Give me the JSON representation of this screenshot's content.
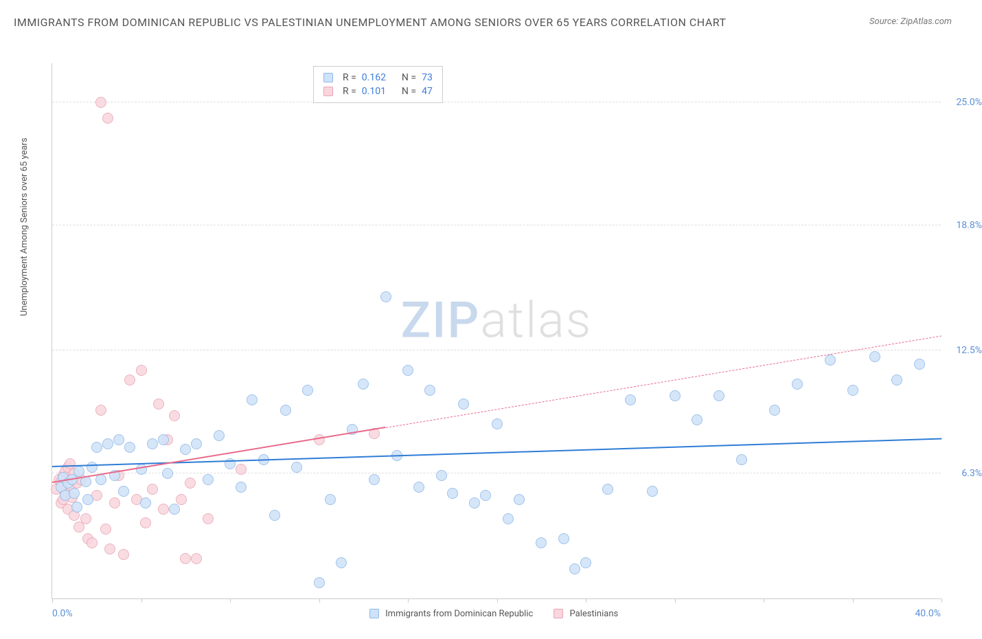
{
  "title": "IMMIGRANTS FROM DOMINICAN REPUBLIC VS PALESTINIAN UNEMPLOYMENT AMONG SENIORS OVER 65 YEARS CORRELATION CHART",
  "source_label": "Source: ZipAtlas.com",
  "ylabel": "Unemployment Among Seniors over 65 years",
  "watermark_a": "ZIP",
  "watermark_b": "atlas",
  "chart": {
    "type": "scatter",
    "xlim": [
      0,
      40
    ],
    "ylim": [
      0,
      27
    ],
    "x_min_label": "0.0%",
    "x_max_label": "40.0%",
    "yticks": [
      {
        "v": 6.3,
        "label": "6.3%"
      },
      {
        "v": 12.5,
        "label": "12.5%"
      },
      {
        "v": 18.8,
        "label": "18.8%"
      },
      {
        "v": 25.0,
        "label": "25.0%"
      }
    ],
    "xtick_positions": [
      0,
      4,
      8,
      12,
      16,
      20,
      24,
      28,
      32,
      36,
      40
    ],
    "grid_color": "#dddddd",
    "axis_color": "#cccccc",
    "background_color": "#ffffff",
    "series": [
      {
        "name": "Immigrants from Dominican Republic",
        "fill": "#cfe2f9",
        "stroke": "#8fb8e8",
        "point_radius": 8,
        "stats": {
          "R": "0.162",
          "N": "73"
        },
        "trend": {
          "x1": 0,
          "y1": 6.6,
          "x2": 40,
          "y2": 8.0,
          "color": "#2e7cd6",
          "solid_until_x": 40
        },
        "points": [
          [
            0.4,
            5.6
          ],
          [
            0.5,
            6.1
          ],
          [
            0.6,
            5.2
          ],
          [
            0.7,
            5.8
          ],
          [
            0.9,
            6.0
          ],
          [
            1.0,
            5.3
          ],
          [
            1.1,
            4.6
          ],
          [
            1.2,
            6.4
          ],
          [
            1.5,
            5.9
          ],
          [
            1.6,
            5.0
          ],
          [
            1.8,
            6.6
          ],
          [
            2.0,
            7.6
          ],
          [
            2.2,
            6.0
          ],
          [
            2.5,
            7.8
          ],
          [
            2.8,
            6.2
          ],
          [
            3.0,
            8.0
          ],
          [
            3.2,
            5.4
          ],
          [
            3.5,
            7.6
          ],
          [
            4.0,
            6.5
          ],
          [
            4.2,
            4.8
          ],
          [
            4.5,
            7.8
          ],
          [
            5.0,
            8.0
          ],
          [
            5.2,
            6.3
          ],
          [
            5.5,
            4.5
          ],
          [
            6.0,
            7.5
          ],
          [
            6.5,
            7.8
          ],
          [
            7.0,
            6.0
          ],
          [
            7.5,
            8.2
          ],
          [
            8.0,
            6.8
          ],
          [
            8.5,
            5.6
          ],
          [
            9.0,
            10.0
          ],
          [
            9.5,
            7.0
          ],
          [
            10.0,
            4.2
          ],
          [
            10.5,
            9.5
          ],
          [
            11.0,
            6.6
          ],
          [
            11.5,
            10.5
          ],
          [
            12.0,
            0.8
          ],
          [
            12.5,
            5.0
          ],
          [
            13.0,
            1.8
          ],
          [
            13.5,
            8.5
          ],
          [
            14.0,
            10.8
          ],
          [
            14.5,
            6.0
          ],
          [
            15.0,
            15.2
          ],
          [
            15.5,
            7.2
          ],
          [
            16.0,
            11.5
          ],
          [
            16.5,
            5.6
          ],
          [
            17.0,
            10.5
          ],
          [
            17.5,
            6.2
          ],
          [
            18.0,
            5.3
          ],
          [
            18.5,
            9.8
          ],
          [
            19.0,
            4.8
          ],
          [
            19.5,
            5.2
          ],
          [
            20.0,
            8.8
          ],
          [
            20.5,
            4.0
          ],
          [
            21.0,
            5.0
          ],
          [
            22.0,
            2.8
          ],
          [
            23.0,
            3.0
          ],
          [
            23.5,
            1.5
          ],
          [
            24.0,
            1.8
          ],
          [
            25.0,
            5.5
          ],
          [
            26.0,
            10.0
          ],
          [
            27.0,
            5.4
          ],
          [
            28.0,
            10.2
          ],
          [
            29.0,
            9.0
          ],
          [
            30.0,
            10.2
          ],
          [
            31.0,
            7.0
          ],
          [
            32.5,
            9.5
          ],
          [
            33.5,
            10.8
          ],
          [
            35.0,
            12.0
          ],
          [
            36.0,
            10.5
          ],
          [
            37.0,
            12.2
          ],
          [
            38.0,
            11.0
          ],
          [
            39.0,
            11.8
          ]
        ]
      },
      {
        "name": "Palestinians",
        "fill": "#f9d6de",
        "stroke": "#e8a5b5",
        "point_radius": 8,
        "stats": {
          "R": "0.101",
          "N": "47"
        },
        "trend": {
          "x1": 0,
          "y1": 5.8,
          "x2": 40,
          "y2": 13.2,
          "color": "#e86a8a",
          "solid_until_x": 15
        },
        "points": [
          [
            0.2,
            5.5
          ],
          [
            0.3,
            6.0
          ],
          [
            0.4,
            4.8
          ],
          [
            0.4,
            5.9
          ],
          [
            0.5,
            6.2
          ],
          [
            0.5,
            5.0
          ],
          [
            0.6,
            6.4
          ],
          [
            0.6,
            5.3
          ],
          [
            0.7,
            6.6
          ],
          [
            0.7,
            4.5
          ],
          [
            0.8,
            5.7
          ],
          [
            0.8,
            6.8
          ],
          [
            0.9,
            5.1
          ],
          [
            1.0,
            6.3
          ],
          [
            1.0,
            4.2
          ],
          [
            1.1,
            5.8
          ],
          [
            1.2,
            3.6
          ],
          [
            1.3,
            6.0
          ],
          [
            1.5,
            4.0
          ],
          [
            1.6,
            3.0
          ],
          [
            1.8,
            2.8
          ],
          [
            2.0,
            5.2
          ],
          [
            2.2,
            9.5
          ],
          [
            2.4,
            3.5
          ],
          [
            2.6,
            2.5
          ],
          [
            2.8,
            4.8
          ],
          [
            3.0,
            6.2
          ],
          [
            3.2,
            2.2
          ],
          [
            3.5,
            11.0
          ],
          [
            3.8,
            5.0
          ],
          [
            4.0,
            11.5
          ],
          [
            4.2,
            3.8
          ],
          [
            4.5,
            5.5
          ],
          [
            4.8,
            9.8
          ],
          [
            5.0,
            4.5
          ],
          [
            5.2,
            8.0
          ],
          [
            5.5,
            9.2
          ],
          [
            5.8,
            5.0
          ],
          [
            6.0,
            2.0
          ],
          [
            6.2,
            5.8
          ],
          [
            6.5,
            2.0
          ],
          [
            7.0,
            4.0
          ],
          [
            8.5,
            6.5
          ],
          [
            12.0,
            8.0
          ],
          [
            14.5,
            8.3
          ],
          [
            2.2,
            25.0
          ],
          [
            2.5,
            24.2
          ]
        ]
      }
    ]
  },
  "legend_bottom": [
    {
      "label": "Immigrants from Dominican Republic",
      "fill": "#cfe2f9",
      "stroke": "#8fb8e8"
    },
    {
      "label": "Palestinians",
      "fill": "#f9d6de",
      "stroke": "#e8a5b5"
    }
  ],
  "stat_labels": {
    "R": "R =",
    "N": "N ="
  }
}
